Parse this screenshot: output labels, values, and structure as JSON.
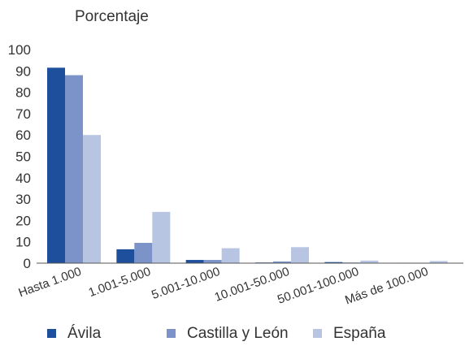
{
  "chart_data": {
    "type": "bar",
    "ylabel": "Porcentaje",
    "ylim": [
      0,
      100
    ],
    "yticks": [
      0,
      10,
      20,
      30,
      40,
      50,
      60,
      70,
      80,
      90,
      100
    ],
    "grid": false,
    "legend_position": "bottom",
    "categories": [
      "Hasta 1.000",
      "1.001-5.000",
      "5.001-10.000",
      "10.001-50.000",
      "50.001-100.000",
      "Más de 100.000"
    ],
    "series": [
      {
        "name": "Ávila",
        "color": "#1d4f9c",
        "values": [
          91.5,
          6.5,
          1.5,
          0.3,
          0.5,
          0.2
        ]
      },
      {
        "name": "Castilla y León",
        "color": "#7b93c8",
        "values": [
          88.0,
          9.5,
          1.5,
          0.8,
          0.3,
          0.2
        ]
      },
      {
        "name": "España",
        "color": "#b8c5e2",
        "values": [
          60.0,
          24.0,
          7.0,
          7.5,
          1.2,
          1.0
        ]
      }
    ]
  }
}
